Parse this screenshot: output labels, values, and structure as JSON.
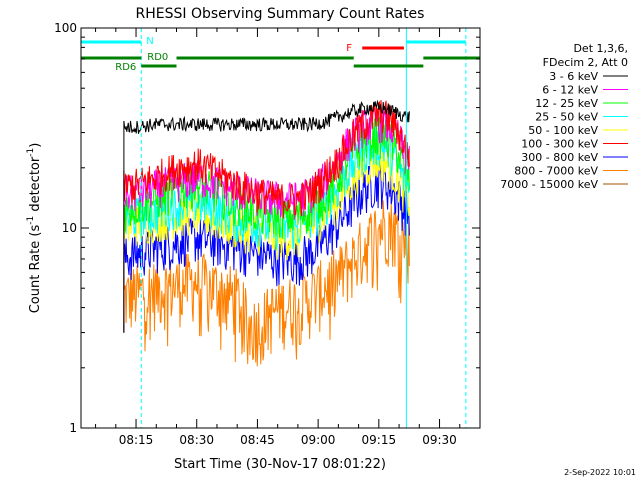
{
  "chart_data": {
    "type": "line",
    "title": "RHESSI Observing Summary Count Rates",
    "xlabel": "Start Time (30-Nov-17 08:01:22)",
    "ylabel_main": "Count Rate (s",
    "ylabel_sup1": "-1",
    "ylabel_mid": " detector",
    "ylabel_sup2": "-1",
    "ylabel_end": ")",
    "y_scale": "log",
    "ylim": [
      1,
      100
    ],
    "xlim_minutes": [
      481.4,
      580.0
    ],
    "x_ticks": [
      {
        "minutes": 495,
        "label": "08:15"
      },
      {
        "minutes": 510,
        "label": "08:30"
      },
      {
        "minutes": 525,
        "label": "08:45"
      },
      {
        "minutes": 540,
        "label": "09:00"
      },
      {
        "minutes": 555,
        "label": "09:15"
      },
      {
        "minutes": 570,
        "label": "09:30"
      }
    ],
    "y_ticks": [
      {
        "value": 1,
        "label": "1"
      },
      {
        "value": 10,
        "label": "10"
      },
      {
        "value": 100,
        "label": "100"
      }
    ],
    "legend_placement": "right",
    "legend_header": [
      "Det 1,3,6,",
      "FDecim 2, Att 0"
    ],
    "series": [
      {
        "name": "3 - 6 keV",
        "color": "#000000",
        "x": [
          492,
          495,
          500,
          510,
          520,
          530,
          538,
          542,
          548,
          552,
          556,
          559,
          562
        ],
        "y": [
          32,
          32,
          33,
          33,
          33,
          33,
          33,
          34,
          38,
          40,
          40,
          38,
          36
        ]
      },
      {
        "name": "6 - 12 keV",
        "color": "#ff00ff",
        "x": [
          492,
          495,
          500,
          505,
          510,
          515,
          520,
          525,
          530,
          535,
          538,
          541,
          545,
          548,
          551,
          554,
          556,
          558,
          560,
          562
        ],
        "y": [
          15,
          15,
          16,
          17,
          18,
          17,
          15.5,
          14.5,
          14,
          14,
          15,
          17,
          22,
          28,
          32,
          34,
          34,
          32,
          28,
          22
        ]
      },
      {
        "name": "12 - 25 keV",
        "color": "#00ff00",
        "x": [
          492,
          495,
          500,
          505,
          510,
          515,
          520,
          525,
          530,
          535,
          538,
          541,
          545,
          548,
          551,
          554,
          556,
          558,
          560,
          562
        ],
        "y": [
          12.5,
          13,
          14,
          15.5,
          16.5,
          15,
          13,
          12,
          11.5,
          11.5,
          12.5,
          14,
          18,
          23,
          27,
          29,
          29,
          27,
          23,
          18
        ]
      },
      {
        "name": "25 - 50 keV",
        "color": "#00ffff",
        "x": [
          492,
          495,
          500,
          505,
          510,
          515,
          520,
          525,
          530,
          535,
          538,
          541,
          545,
          548,
          551,
          554,
          556,
          558,
          560,
          562
        ],
        "y": [
          11,
          11.5,
          12,
          13,
          13.5,
          12.5,
          11,
          10.5,
          10,
          10,
          11,
          12.5,
          16,
          20,
          24,
          26,
          26,
          24,
          20,
          16
        ]
      },
      {
        "name": "50 - 100 keV",
        "color": "#ffff00",
        "x": [
          492,
          495,
          500,
          505,
          510,
          515,
          520,
          525,
          530,
          535,
          538,
          541,
          545,
          548,
          551,
          554,
          556,
          558,
          560,
          562
        ],
        "y": [
          10,
          10.5,
          11,
          11.5,
          12,
          11,
          10,
          9.5,
          9,
          9,
          10,
          11.5,
          14,
          17,
          20,
          22,
          22,
          20,
          17,
          14
        ]
      },
      {
        "name": "100 - 300 keV",
        "color": "#ff0000",
        "x": [
          492,
          495,
          500,
          505,
          510,
          515,
          520,
          525,
          530,
          535,
          538,
          541,
          545,
          548,
          551,
          554,
          556,
          558,
          560,
          562
        ],
        "y": [
          16,
          16.5,
          18,
          20,
          21,
          19,
          16.5,
          15,
          14,
          14,
          15,
          17.5,
          22,
          28,
          33,
          36,
          37,
          35,
          30,
          24
        ]
      },
      {
        "name": "300 - 800 keV",
        "color": "#0000ff",
        "x": [
          492,
          495,
          500,
          505,
          510,
          515,
          520,
          525,
          530,
          535,
          538,
          541,
          545,
          548,
          551,
          554,
          556,
          558,
          560,
          562
        ],
        "y": [
          7,
          7.5,
          8,
          8.5,
          9,
          8.5,
          8,
          7.5,
          7,
          7,
          7.5,
          8.5,
          10.5,
          13,
          15.5,
          17,
          17,
          16,
          14,
          12
        ]
      },
      {
        "name": "800 - 7000 keV",
        "color": "#ff8000",
        "x": [
          492,
          495,
          500,
          505,
          510,
          515,
          520,
          523,
          526,
          530,
          535,
          538,
          541,
          545,
          548,
          551,
          554,
          556,
          558,
          560,
          562
        ],
        "y": [
          4.5,
          4.7,
          5,
          5.2,
          5.5,
          5,
          4.5,
          3.2,
          3.4,
          4,
          4.2,
          4.5,
          5,
          5.8,
          6.8,
          8,
          9.5,
          10.5,
          10.5,
          9.5,
          8.5
        ]
      },
      {
        "name": "7000 - 15000 keV",
        "color": "#a05000",
        "x": [],
        "y": []
      }
    ],
    "segment_bars": [
      {
        "label": "N",
        "color": "#00ffff",
        "start": 481.4,
        "end": 496.3
      },
      {
        "label": "",
        "color": "#00ffff",
        "start": 561.8,
        "end": 576.5
      },
      {
        "label": "RD6",
        "color": "#008000",
        "start": 481.4,
        "end": 496.3
      },
      {
        "label": "RD0",
        "color": "#008000",
        "start": 496.3,
        "end": 505.0
      },
      {
        "label": "",
        "color": "#008000",
        "start": 505.0,
        "end": 548.8
      },
      {
        "label": "",
        "color": "#008000",
        "start": 548.8,
        "end": 566.0
      },
      {
        "label": "",
        "color": "#008000",
        "start": 566.0,
        "end": 580.0
      },
      {
        "label": "F",
        "color": "#ff0000",
        "start": 550.9,
        "end": 561.2
      }
    ],
    "vertical_lines": [
      {
        "minutes": 496.3,
        "style": "dashed",
        "color": "#00ffff"
      },
      {
        "minutes": 561.8,
        "style": "solid",
        "color": "#00ffff"
      },
      {
        "minutes": 576.5,
        "style": "dashed",
        "color": "#00ffff"
      }
    ],
    "data_start_minutes": 492.0,
    "data_end_minutes": 562.6,
    "footer_date": "2-Sep-2022 10:01"
  }
}
